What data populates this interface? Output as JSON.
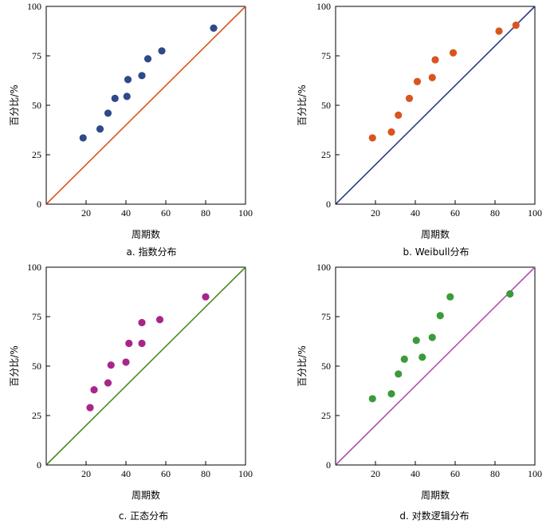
{
  "chart_data": [
    {
      "type": "scatter",
      "caption": "a.  指数分布",
      "xlabel": "周期数",
      "ylabel": "百分比/%",
      "xlim": [
        0,
        100
      ],
      "ylim": [
        0,
        100
      ],
      "x_ticks": [
        "20",
        "40",
        "60",
        "80",
        "100"
      ],
      "y_ticks": [
        "0",
        "25",
        "50",
        "75",
        "100"
      ],
      "grid": false,
      "line_color": "#d9541e",
      "point_color": "#2f4a8a",
      "reference_line": [
        [
          0,
          0
        ],
        [
          100,
          100
        ]
      ],
      "points": [
        {
          "x": 18.5,
          "y": 33.5
        },
        {
          "x": 27,
          "y": 38
        },
        {
          "x": 31,
          "y": 46
        },
        {
          "x": 34.5,
          "y": 53.5
        },
        {
          "x": 40.5,
          "y": 54.5
        },
        {
          "x": 41,
          "y": 63
        },
        {
          "x": 48,
          "y": 65
        },
        {
          "x": 51,
          "y": 73.5
        },
        {
          "x": 58,
          "y": 77.5
        },
        {
          "x": 84,
          "y": 89
        }
      ]
    },
    {
      "type": "scatter",
      "caption": "b.  Weibull分布",
      "xlabel": "周期数",
      "ylabel": "百分比/%",
      "xlim": [
        0,
        100
      ],
      "ylim": [
        0,
        100
      ],
      "x_ticks": [
        "20",
        "40",
        "60",
        "80",
        "100"
      ],
      "y_ticks": [
        "0",
        "25",
        "50",
        "75",
        "100"
      ],
      "grid": false,
      "line_color": "#2b3e85",
      "point_color": "#d9541e",
      "reference_line": [
        [
          0,
          0
        ],
        [
          100,
          100
        ]
      ],
      "points": [
        {
          "x": 18.5,
          "y": 33.5
        },
        {
          "x": 28,
          "y": 36.5
        },
        {
          "x": 31.5,
          "y": 45
        },
        {
          "x": 37,
          "y": 53.5
        },
        {
          "x": 41,
          "y": 62
        },
        {
          "x": 48.5,
          "y": 64
        },
        {
          "x": 50,
          "y": 73
        },
        {
          "x": 59,
          "y": 76.5
        },
        {
          "x": 82,
          "y": 87.5
        },
        {
          "x": 90.5,
          "y": 90.5
        }
      ]
    },
    {
      "type": "scatter",
      "caption": "c.  正态分布",
      "xlabel": "周期数",
      "ylabel": "百分比/%",
      "xlim": [
        0,
        100
      ],
      "ylim": [
        0,
        100
      ],
      "x_ticks": [
        "20",
        "40",
        "60",
        "80",
        "100"
      ],
      "y_ticks": [
        "0",
        "25",
        "50",
        "75",
        "100"
      ],
      "grid": false,
      "line_color": "#4e8a1e",
      "point_color": "#a8268a",
      "reference_line": [
        [
          0,
          0
        ],
        [
          100,
          100
        ]
      ],
      "points": [
        {
          "x": 22,
          "y": 29
        },
        {
          "x": 24,
          "y": 38
        },
        {
          "x": 31,
          "y": 41.5
        },
        {
          "x": 32.5,
          "y": 50.5
        },
        {
          "x": 40,
          "y": 52
        },
        {
          "x": 41.5,
          "y": 61.5
        },
        {
          "x": 48,
          "y": 61.5
        },
        {
          "x": 48,
          "y": 72
        },
        {
          "x": 57,
          "y": 73.5
        },
        {
          "x": 80,
          "y": 85
        }
      ]
    },
    {
      "type": "scatter",
      "caption": "d.  对数逻辑分布",
      "xlabel": "周期数",
      "ylabel": "百分比/%",
      "xlim": [
        0,
        100
      ],
      "ylim": [
        0,
        100
      ],
      "x_ticks": [
        "20",
        "40",
        "60",
        "80",
        "100"
      ],
      "y_ticks": [
        "0",
        "25",
        "50",
        "75",
        "100"
      ],
      "grid": false,
      "line_color": "#b24fb0",
      "point_color": "#3b9a3b",
      "reference_line": [
        [
          0,
          0
        ],
        [
          100,
          100
        ]
      ],
      "points": [
        {
          "x": 18.5,
          "y": 33.5
        },
        {
          "x": 28,
          "y": 36
        },
        {
          "x": 31.5,
          "y": 46
        },
        {
          "x": 34.5,
          "y": 53.5
        },
        {
          "x": 40.5,
          "y": 63
        },
        {
          "x": 43.5,
          "y": 54.5
        },
        {
          "x": 48.5,
          "y": 64.5
        },
        {
          "x": 52.5,
          "y": 75.5
        },
        {
          "x": 57.5,
          "y": 85
        },
        {
          "x": 87.5,
          "y": 86.5
        }
      ]
    }
  ]
}
